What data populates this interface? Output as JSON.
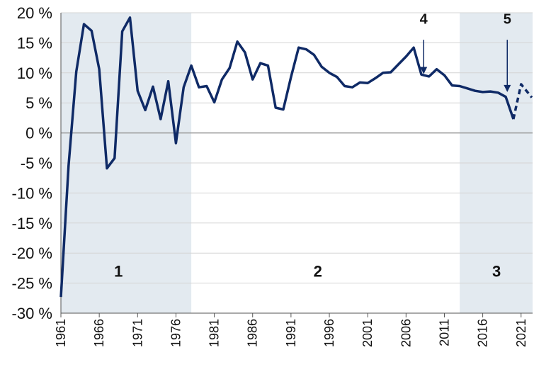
{
  "chart_data": {
    "type": "line",
    "title": "",
    "xlabel": "",
    "ylabel": "",
    "ylim": [
      -30,
      20
    ],
    "xlim": [
      1961,
      2022.5
    ],
    "y_ticks": [
      20,
      15,
      10,
      5,
      0,
      -5,
      -10,
      -15,
      -20,
      -25,
      -30
    ],
    "y_tick_labels": [
      "20 %",
      "15 %",
      "10 %",
      "5 %",
      "0 %",
      "-5 %",
      "-10 %",
      "-15 %",
      "-20 %",
      "-25 %",
      "-30 %"
    ],
    "x_ticks": [
      1961,
      1966,
      1971,
      1976,
      1981,
      1986,
      1991,
      1996,
      2001,
      2006,
      2011,
      2016,
      2021
    ],
    "x_tick_labels": [
      "1961",
      "1966",
      "1971",
      "1976",
      "1981",
      "1986",
      "1991",
      "1996",
      "2001",
      "2006",
      "2011",
      "2016",
      "2021"
    ],
    "grid": "horizontal",
    "line_color": "#0f2a66",
    "shade_color": "#e3eaf0",
    "zero_line_color": "#9a9a9a",
    "shaded_regions": [
      {
        "start": 1961,
        "end": 1978
      },
      {
        "start": 2013,
        "end": 2022.5
      }
    ],
    "region_labels": [
      {
        "text": "1",
        "x": 1968.5,
        "y": -23
      },
      {
        "text": "2",
        "x": 1994.5,
        "y": -23
      },
      {
        "text": "3",
        "x": 2017.8,
        "y": -23
      }
    ],
    "annotations": [
      {
        "text": "4",
        "x": 2008.3,
        "y_arrow_start": 15.5,
        "y_arrow_end": 9.8,
        "y_label": 18.2
      },
      {
        "text": "5",
        "x": 2019.2,
        "y_arrow_start": 15.5,
        "y_arrow_end": 6.8,
        "y_label": 18.2
      }
    ],
    "series": [
      {
        "style": "solid",
        "x": [
          1961,
          1962,
          1963,
          1964,
          1965,
          1966,
          1967,
          1968,
          1969,
          1970,
          1971,
          1972,
          1973,
          1974,
          1975,
          1976,
          1977,
          1978,
          1979,
          1980,
          1981,
          1982,
          1983,
          1984,
          1985,
          1986,
          1987,
          1988,
          1989,
          1990,
          1991,
          1992,
          1993,
          1994,
          1995,
          1996,
          1997,
          1998,
          1999,
          2000,
          2001,
          2002,
          2003,
          2004,
          2005,
          2006,
          2007,
          2008,
          2009,
          2010,
          2011,
          2012,
          2013,
          2014,
          2015,
          2016,
          2017,
          2018,
          2019,
          2020
        ],
        "values": [
          -27.3,
          -5.5,
          10.2,
          18.1,
          17.0,
          10.6,
          -5.9,
          -4.2,
          16.9,
          19.2,
          7.0,
          3.8,
          7.7,
          2.3,
          8.6,
          -1.7,
          7.6,
          11.2,
          7.6,
          7.8,
          5.1,
          8.9,
          10.8,
          15.2,
          13.4,
          8.9,
          11.6,
          11.2,
          4.2,
          3.9,
          9.3,
          14.2,
          13.9,
          13.0,
          11.0,
          10.0,
          9.3,
          7.8,
          7.6,
          8.4,
          8.3,
          9.1,
          10.0,
          10.1,
          11.4,
          12.7,
          14.2,
          9.7,
          9.4,
          10.6,
          9.6,
          7.9,
          7.8,
          7.4,
          7.0,
          6.8,
          6.9,
          6.7,
          6.0,
          2.3
        ]
      },
      {
        "style": "dashed",
        "x": [
          2020,
          2021,
          2022.4
        ],
        "values": [
          2.3,
          8.1,
          5.9
        ]
      }
    ]
  }
}
